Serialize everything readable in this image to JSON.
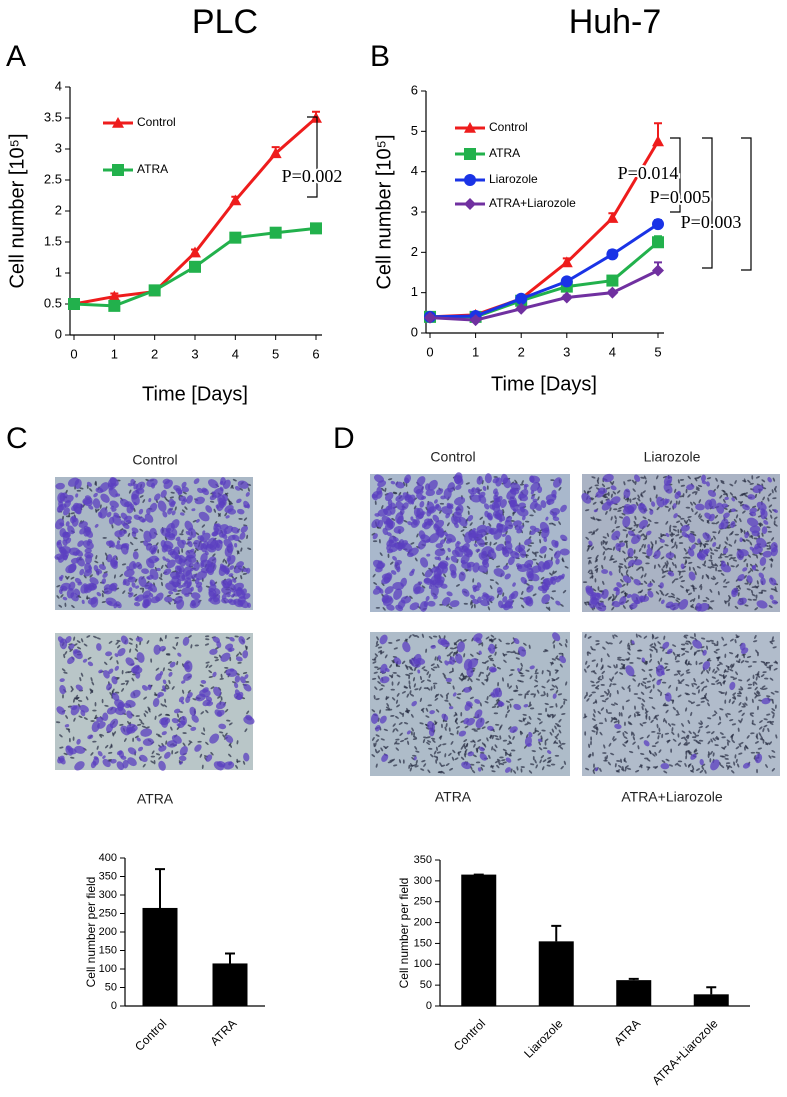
{
  "columns": [
    "PLC",
    "Huh-7"
  ],
  "micrographs": [
    {
      "panel": "C",
      "captions": [
        "Control",
        "ATRA"
      ]
    },
    {
      "panel": "D",
      "captions": [
        "Control",
        "Liarozole",
        "ATRA",
        "ATRA+Liarozole"
      ]
    }
  ],
  "chart_data": [
    {
      "type": "line",
      "panel": "A",
      "xlabel": "Time [Days]",
      "ylabel": "Cell number [10⁵]",
      "x": [
        0,
        1,
        2,
        3,
        4,
        5,
        6
      ],
      "xlim": [
        0,
        6
      ],
      "xticks": [
        0,
        1,
        2,
        3,
        4,
        5,
        6
      ],
      "ylim": [
        0,
        4
      ],
      "yticks": [
        0,
        0.5,
        1,
        1.5,
        2,
        2.5,
        3,
        3.5,
        4
      ],
      "series": [
        {
          "name": "Control",
          "color": "#ee1c1c",
          "marker": "triangle",
          "values": [
            0.5,
            0.62,
            0.7,
            1.33,
            2.17,
            2.93,
            3.5
          ],
          "errors": [
            0.03,
            0.05,
            0.05,
            0.05,
            0.06,
            0.1,
            0.1
          ]
        },
        {
          "name": "ATRA",
          "color": "#22b14c",
          "marker": "square",
          "values": [
            0.5,
            0.47,
            0.72,
            1.1,
            1.57,
            1.65,
            1.72
          ],
          "errors": [
            0.03,
            0.03,
            0.03,
            0.05,
            0.05,
            0.07,
            0.05
          ]
        }
      ],
      "annotations": [
        "P=0.002"
      ]
    },
    {
      "type": "line",
      "panel": "B",
      "xlabel": "Time [Days]",
      "ylabel": "Cell number [10⁵]",
      "x": [
        0,
        1,
        2,
        3,
        4,
        5
      ],
      "xlim": [
        0,
        5
      ],
      "xticks": [
        0,
        1,
        2,
        3,
        4,
        5
      ],
      "ylim": [
        0,
        6
      ],
      "yticks": [
        0,
        1,
        2,
        3,
        4,
        5,
        6
      ],
      "series": [
        {
          "name": "Control",
          "color": "#ee1c1c",
          "marker": "triangle",
          "values": [
            0.4,
            0.45,
            0.85,
            1.75,
            2.85,
            4.75
          ],
          "errors": [
            0.05,
            0.05,
            0.05,
            0.1,
            0.12,
            0.45
          ]
        },
        {
          "name": "ATRA",
          "color": "#22b14c",
          "marker": "square",
          "values": [
            0.4,
            0.4,
            0.8,
            1.15,
            1.3,
            2.25
          ],
          "errors": [
            0.05,
            0.05,
            0.05,
            0.05,
            0.05,
            0.15
          ]
        },
        {
          "name": "Liarozole",
          "color": "#1a33e6",
          "marker": "circle",
          "values": [
            0.4,
            0.42,
            0.85,
            1.28,
            1.95,
            2.7
          ],
          "errors": [
            0.05,
            0.05,
            0.05,
            0.05,
            0.1,
            0.1
          ]
        },
        {
          "name": "ATRA+Liarozole",
          "color": "#7030a0",
          "marker": "diamond",
          "values": [
            0.38,
            0.32,
            0.6,
            0.88,
            1.0,
            1.55
          ],
          "errors": [
            0.05,
            0.05,
            0.05,
            0.05,
            0.05,
            0.2
          ]
        }
      ],
      "annotations": [
        "P=0.014",
        "P=0.005",
        "P=0.003"
      ]
    },
    {
      "type": "bar",
      "ylabel": "Cell number per field",
      "categories": [
        "Control",
        "ATRA"
      ],
      "values": [
        265,
        115
      ],
      "errors": [
        105,
        27
      ],
      "color": "#000000",
      "ylim": [
        0,
        400
      ],
      "yticks": [
        0,
        50,
        100,
        150,
        200,
        250,
        300,
        350,
        400
      ]
    },
    {
      "type": "bar",
      "ylabel": "Cell number per field",
      "categories": [
        "Control",
        "Liarozole",
        "ATRA",
        "ATRA+Liarozole"
      ],
      "values": [
        315,
        155,
        62,
        28
      ],
      "errors": [
        0,
        37,
        3,
        17
      ],
      "color": "#000000",
      "ylim": [
        0,
        350
      ],
      "yticks": [
        0,
        50,
        100,
        150,
        200,
        250,
        300,
        350
      ]
    }
  ]
}
